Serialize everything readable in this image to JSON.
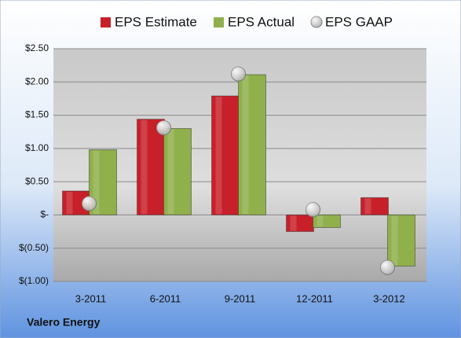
{
  "chart_data": {
    "type": "bar",
    "source": "Valero Energy",
    "categories": [
      "3-2011",
      "6-2011",
      "9-2011",
      "12-2011",
      "3-2012"
    ],
    "series": [
      {
        "name": "EPS Estimate",
        "color": "#c8202a",
        "values": [
          0.36,
          1.44,
          1.79,
          -0.25,
          0.26
        ]
      },
      {
        "name": "EPS Actual",
        "color": "#8fb04a",
        "values": [
          0.98,
          1.3,
          2.11,
          -0.19,
          -0.77
        ]
      },
      {
        "name": "EPS GAAP",
        "color": "#b8b8b8",
        "marker": "circle",
        "values": [
          0.17,
          1.31,
          2.12,
          0.08,
          -0.79
        ]
      }
    ],
    "ylim": [
      -1.0,
      2.5
    ],
    "yticks": [
      {
        "value": 2.5,
        "label": "$2.50"
      },
      {
        "value": 2.0,
        "label": "$2.00"
      },
      {
        "value": 1.5,
        "label": "$1.50"
      },
      {
        "value": 1.0,
        "label": "$1.00"
      },
      {
        "value": 0.5,
        "label": "$0.50"
      },
      {
        "value": 0,
        "label": "$-"
      },
      {
        "value": -0.5,
        "label": "$(0.50)"
      },
      {
        "value": -1.0,
        "label": "$(1.00)"
      }
    ],
    "grid": true,
    "legend": "top"
  }
}
